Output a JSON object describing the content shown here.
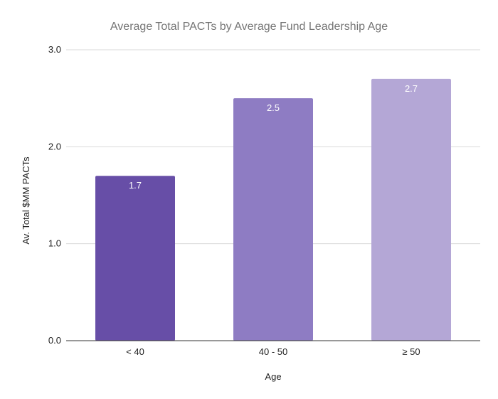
{
  "chart_data": {
    "type": "bar",
    "title": "Average Total PACTs by Average Fund Leadership Age",
    "xlabel": "Age",
    "ylabel": "Av. Total $MM PACTs",
    "categories": [
      "< 40",
      "40 - 50",
      "≥ 50"
    ],
    "values": [
      1.7,
      2.5,
      2.7
    ],
    "data_labels": [
      "1.7",
      "2.5",
      "2.7"
    ],
    "ylim": [
      0,
      3
    ],
    "yticks": [
      0,
      1,
      2,
      3
    ],
    "ytick_labels": [
      "0.0",
      "1.0",
      "2.0",
      "3.0"
    ],
    "bar_colors": [
      "#674ea7",
      "#8e7cc3",
      "#b4a7d6"
    ],
    "grid": true,
    "legend": "none"
  }
}
